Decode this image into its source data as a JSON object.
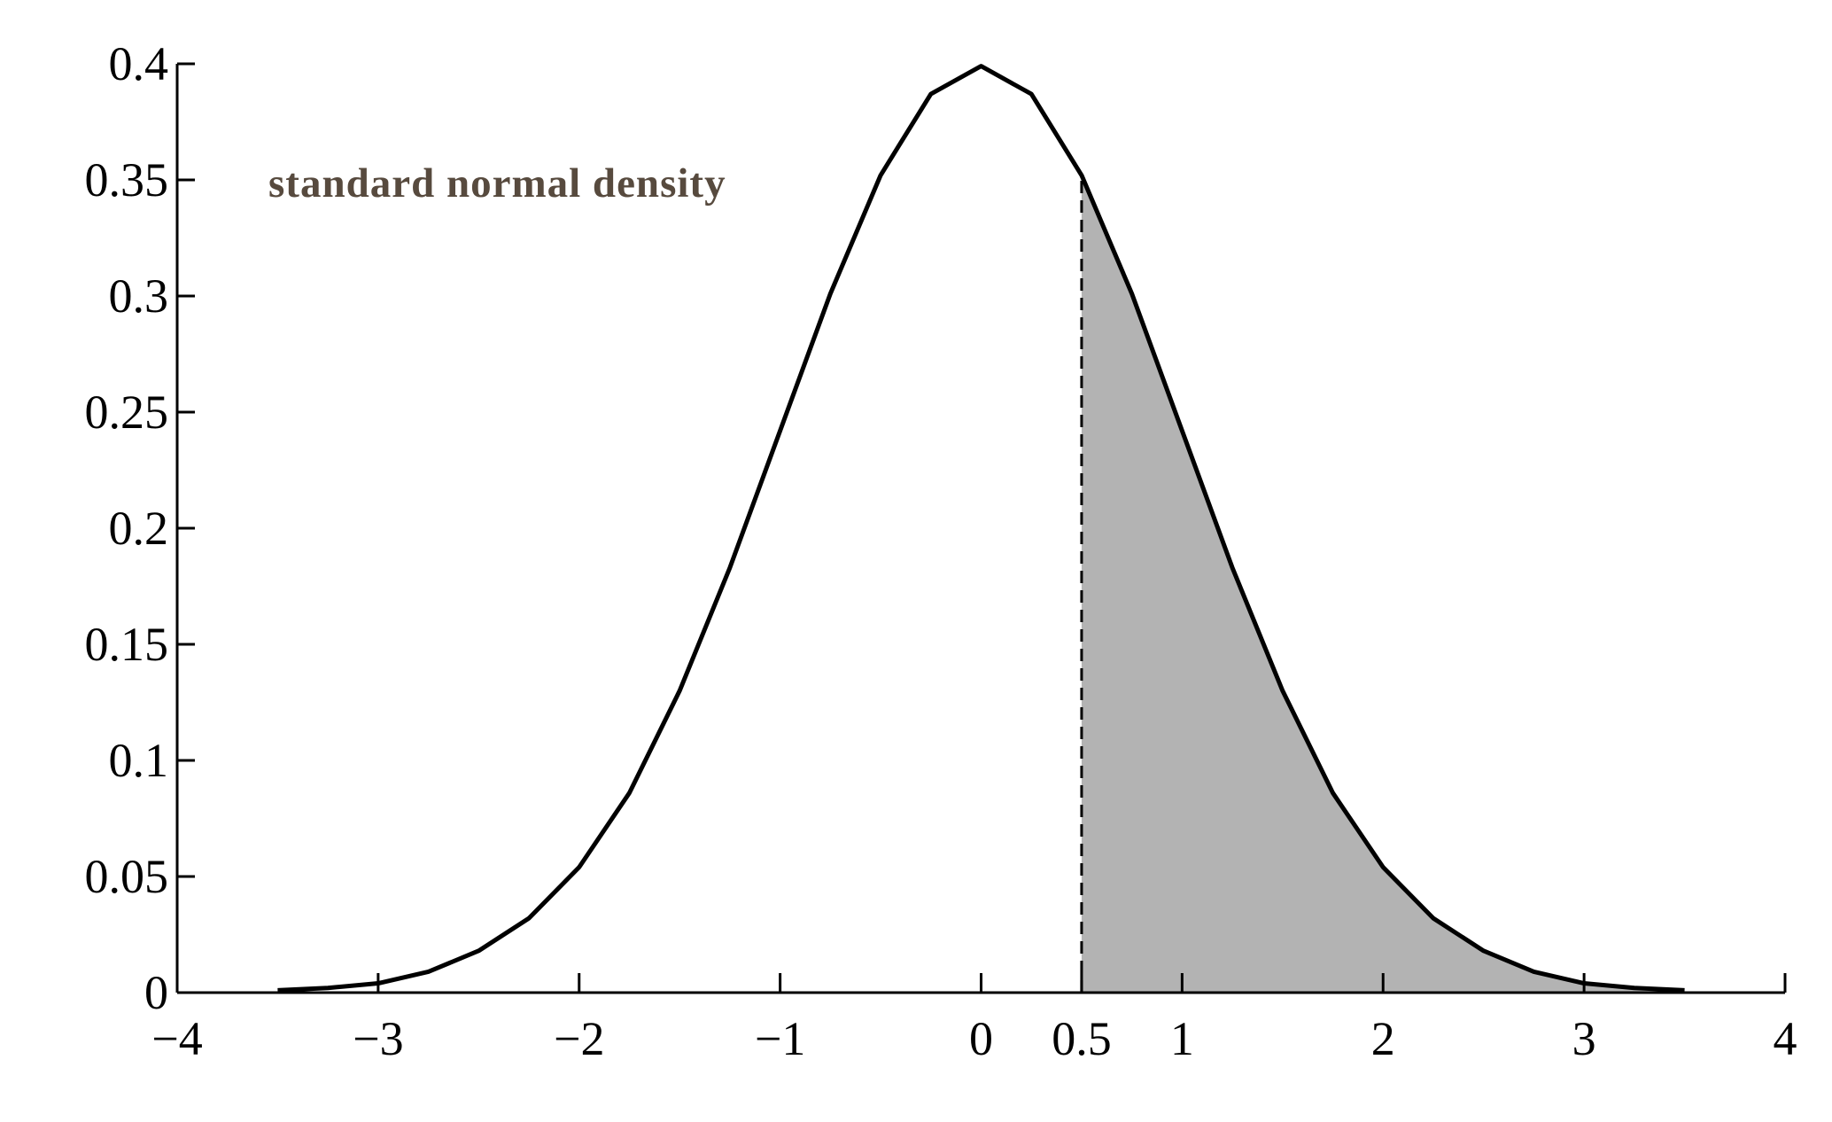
{
  "chart_data": {
    "type": "line",
    "annotation": "standard normal density",
    "x": [
      -3.5,
      -3.25,
      -3,
      -2.75,
      -2.5,
      -2.25,
      -2,
      -1.75,
      -1.5,
      -1.25,
      -1,
      -0.75,
      -0.5,
      -0.25,
      0,
      0.25,
      0.5,
      0.75,
      1,
      1.25,
      1.5,
      1.75,
      2,
      2.25,
      2.5,
      2.75,
      3,
      3.25,
      3.5
    ],
    "values": [
      0.001,
      0.002,
      0.004,
      0.009,
      0.018,
      0.032,
      0.054,
      0.086,
      0.13,
      0.183,
      0.242,
      0.301,
      0.352,
      0.387,
      0.399,
      0.387,
      0.352,
      0.301,
      0.242,
      0.183,
      0.13,
      0.086,
      0.054,
      0.032,
      0.018,
      0.009,
      0.004,
      0.002,
      0.001
    ],
    "color": "#000000",
    "shade_from": 0.5,
    "shade_color": "#b3b3b3",
    "xlim": [
      -4,
      4
    ],
    "ylim": [
      0,
      0.4
    ],
    "xticks": [
      {
        "value": -4,
        "label": "−4"
      },
      {
        "value": -3,
        "label": "−3"
      },
      {
        "value": -2,
        "label": "−2"
      },
      {
        "value": -1,
        "label": "−1"
      },
      0,
      0.5,
      1,
      2,
      3,
      4
    ],
    "yticks": [
      0,
      0.05,
      0.1,
      0.15,
      0.2,
      0.25,
      0.3,
      0.35,
      0.4
    ],
    "grid": false
  }
}
